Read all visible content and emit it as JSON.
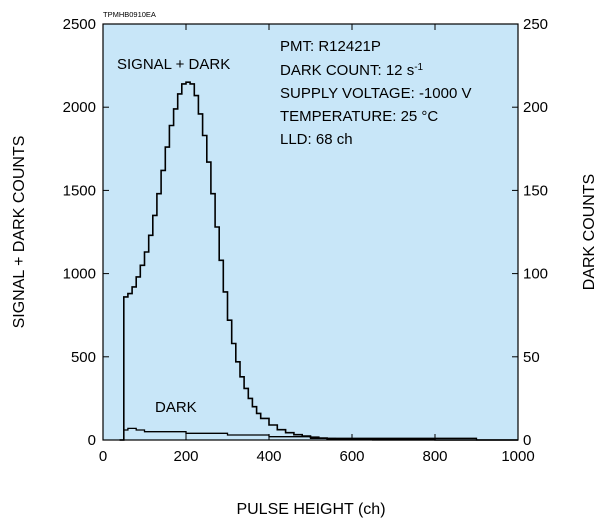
{
  "figure_code": "TPMHB0910EA",
  "info_box": {
    "line1": "PMT: R12421P",
    "line2_prefix": "DARK COUNT: 12 s",
    "line2_sup": "-1",
    "line3": "SUPPLY VOLTAGE: -1000 V",
    "line4": "TEMPERATURE: 25 °C",
    "line5": "LLD: 68 ch"
  },
  "colors": {
    "plot_bg": "#c8e6f8",
    "line": "#000000"
  },
  "chart_data": {
    "type": "line",
    "xlabel": "PULSE HEIGHT (ch)",
    "ylabel": "SIGNAL + DARK COUNTS",
    "y2label": "DARK COUNTS",
    "xlim": [
      0,
      1000
    ],
    "ylim": [
      0,
      2500
    ],
    "y2lim": [
      0,
      250
    ],
    "x_ticks": [
      "0",
      "200",
      "400",
      "600",
      "800",
      "1000"
    ],
    "y_ticks": [
      "0",
      "500",
      "1000",
      "1500",
      "2000",
      "2500"
    ],
    "y2_ticks": [
      "0",
      "50",
      "100",
      "150",
      "200",
      "250"
    ],
    "grid": false,
    "series": [
      {
        "name": "SIGNAL + DARK",
        "axis": "left",
        "x": [
          40,
          50,
          60,
          70,
          80,
          90,
          100,
          110,
          120,
          130,
          140,
          150,
          160,
          170,
          180,
          190,
          200,
          210,
          220,
          230,
          240,
          250,
          260,
          270,
          280,
          290,
          300,
          310,
          320,
          330,
          340,
          350,
          360,
          370,
          380,
          400,
          420,
          440,
          460,
          480,
          500,
          520,
          540,
          560,
          580,
          600,
          650,
          700,
          800,
          1000
        ],
        "y": [
          0,
          860,
          880,
          920,
          980,
          1050,
          1130,
          1230,
          1350,
          1480,
          1620,
          1760,
          1890,
          1990,
          2080,
          2140,
          2150,
          2140,
          2070,
          1960,
          1830,
          1670,
          1480,
          1280,
          1080,
          890,
          720,
          580,
          470,
          380,
          310,
          250,
          200,
          160,
          130,
          90,
          62,
          44,
          32,
          24,
          17,
          12,
          8,
          5,
          3,
          2,
          1,
          1,
          0,
          0
        ]
      },
      {
        "name": "DARK",
        "axis": "right",
        "x": [
          40,
          50,
          60,
          80,
          100,
          150,
          200,
          250,
          300,
          350,
          400,
          450,
          500,
          600,
          700,
          800,
          900,
          1000
        ],
        "y": [
          0,
          6,
          7,
          6,
          5,
          5,
          4,
          4,
          3,
          3,
          2,
          2,
          1,
          1,
          1,
          1,
          0,
          0
        ]
      }
    ]
  }
}
